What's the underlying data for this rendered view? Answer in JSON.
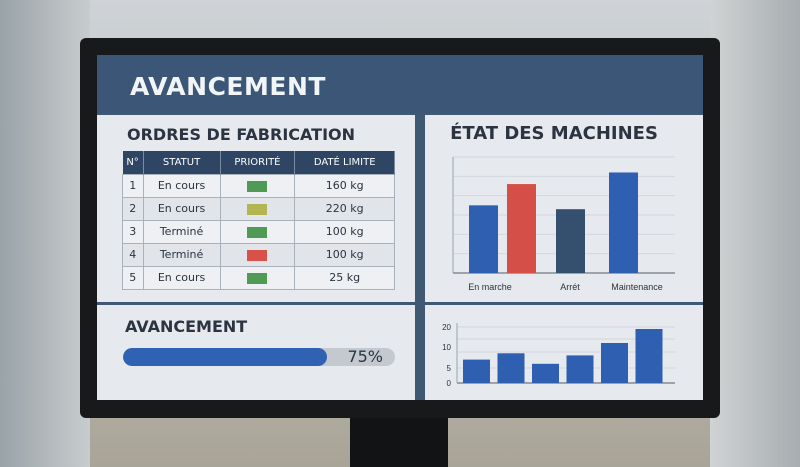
{
  "header": {
    "title": "AVANCEMENT"
  },
  "orders": {
    "title": "ORDRES DE FABRICATION",
    "columns": [
      "N°",
      "STATUT",
      "PRIORITÉ",
      "DATÉ LIMITE"
    ],
    "rows": [
      {
        "n": "1",
        "status": "En cours",
        "priority_color": "#4f9a55",
        "value": "160 kg"
      },
      {
        "n": "2",
        "status": "En cours",
        "priority_color": "#b3b552",
        "value": "220 kg"
      },
      {
        "n": "3",
        "status": "Terminé",
        "priority_color": "#4f9a55",
        "value": "100 kg"
      },
      {
        "n": "4",
        "status": "Terminé",
        "priority_color": "#d9524a",
        "value": "100 kg"
      },
      {
        "n": "5",
        "status": "En cours",
        "priority_color": "#4f9a55",
        "value": "25 kg"
      }
    ]
  },
  "progress": {
    "title": "AVANCEMENT",
    "label": "75%",
    "percent": 75,
    "color": "#2f62b3"
  },
  "chart_data": [
    {
      "type": "bar",
      "title": "ÉTAT DES MACHINES",
      "categories": [
        "En marche",
        "",
        "Arrét",
        "Maintenance"
      ],
      "values": [
        3.5,
        4.6,
        3.3,
        5.2
      ],
      "colors": [
        "#2f5fb0",
        "#d44f48",
        "#35506e",
        "#2f5fb0"
      ],
      "ylim": [
        0,
        6
      ],
      "grid": true
    },
    {
      "type": "bar",
      "categories": [
        "",
        "",
        "",
        "",
        "",
        ""
      ],
      "values": [
        7,
        8.5,
        6,
        8,
        12,
        19
      ],
      "yticks": [
        "0",
        "5",
        "10",
        "20"
      ],
      "ytick_values": [
        0,
        5,
        10,
        20
      ],
      "color": "#2f5fb0",
      "grid": true
    }
  ]
}
